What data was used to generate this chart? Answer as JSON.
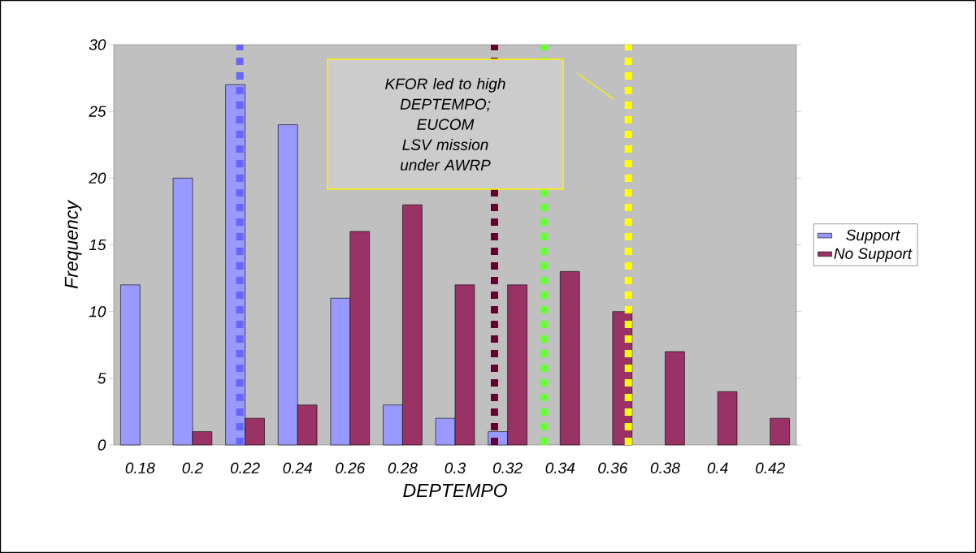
{
  "chart_data": {
    "type": "bar",
    "xlabel": "DEPTEMPO",
    "ylabel": "Frequency",
    "x": [
      0.18,
      0.2,
      0.22,
      0.24,
      0.26,
      0.28,
      0.3,
      0.32,
      0.34,
      0.36,
      0.38,
      0.4,
      0.42
    ],
    "series": [
      {
        "name": "Support",
        "color": "#9999ff",
        "values": [
          12,
          20,
          27,
          24,
          11,
          3,
          2,
          1,
          null,
          null,
          null,
          null,
          null
        ]
      },
      {
        "name": "No Support",
        "color": "#993366",
        "values": [
          null,
          1,
          2,
          3,
          16,
          18,
          12,
          12,
          13,
          10,
          7,
          4,
          2
        ]
      }
    ],
    "xlim": [
      0.17,
      0.43
    ],
    "xticks": [
      0.18,
      0.2,
      0.22,
      0.24,
      0.26,
      0.28,
      0.3,
      0.32,
      0.34,
      0.36,
      0.38,
      0.4,
      0.42
    ],
    "ylim": [
      0,
      30
    ],
    "yticks": [
      0,
      5,
      10,
      15,
      20,
      25,
      30
    ],
    "ref_lines": [
      {
        "axis": "x",
        "value": 0.218,
        "color": "#6666ff",
        "line_style": "dotted"
      },
      {
        "axis": "x",
        "value": 0.315,
        "color": "#660033",
        "line_style": "dotted"
      },
      {
        "axis": "x",
        "value": 0.334,
        "color": "#66ff33",
        "line_style": "dotted"
      },
      {
        "axis": "x",
        "value": 0.366,
        "color": "#ffff00",
        "line_style": "dotted"
      }
    ],
    "annotations": [
      "KFOR led to high DEPTEMPO; EUCOM LSV mission under AWRP"
    ],
    "legend": "right",
    "grid": false
  }
}
